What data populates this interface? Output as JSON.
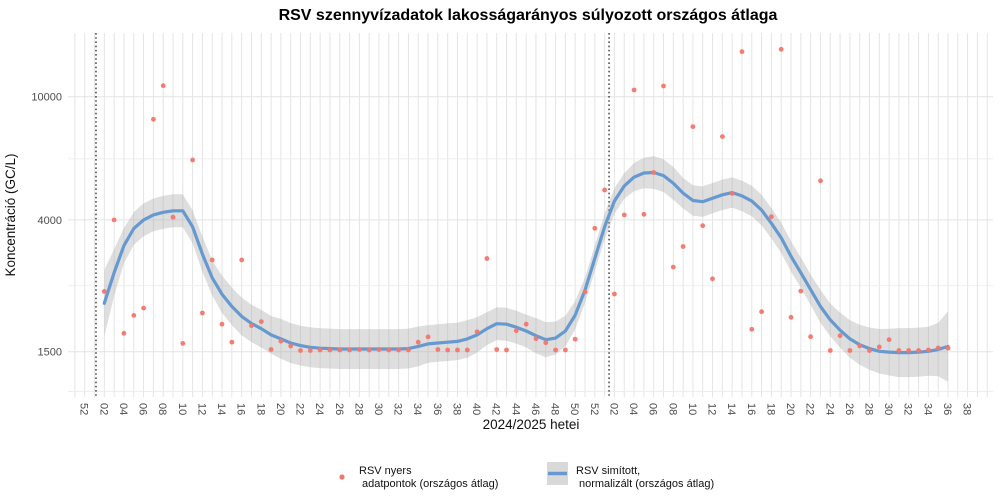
{
  "title": "RSV szennyvízadatok lakosságarányos súlyozott országos átlaga",
  "axis": {
    "xlabel": "2024/2025 hetei",
    "ylabel": "Koncentráció (GC/L)"
  },
  "legend": {
    "raw_line1": "RSV nyers",
    "raw_line2": " adatpontok (országos átlag)",
    "smooth_line1": "RSV simított,",
    "smooth_line2": " normalizált (országos átlag)"
  },
  "colors": {
    "points": "#F3766C",
    "line": "#6699CF",
    "ribbon": "#A8A8A8",
    "grid": "#E4E4E4",
    "grid_minor": "#ECECEC",
    "vline": "#000000",
    "tick_text": "#4D4D4D",
    "legend_key_bg": "#D9D9D9"
  },
  "chart_data": {
    "type": "line",
    "title": "RSV szennyvízadatok lakosságarányos súlyozott országos átlaga",
    "xlabel": "2024/2025 hetei",
    "ylabel": "Koncentráció (GC/L)",
    "y_scale": "log10",
    "ylim": [
      1050,
      16000
    ],
    "grid": "on",
    "legend_position": "bottom",
    "y_tick_labels": [
      "10000",
      "4000",
      "1500"
    ],
    "y_major_ticks": [
      10000,
      4000,
      1500
    ],
    "y_minor_gridlines": [
      6300,
      2450,
      1115
    ],
    "x_tick_step_weeks": 2,
    "x_tick_labels": [
      "52",
      "02",
      "04",
      "06",
      "08",
      "10",
      "12",
      "14",
      "16",
      "18",
      "20",
      "22",
      "24",
      "26",
      "28",
      "30",
      "32",
      "34",
      "36",
      "38",
      "40",
      "42",
      "44",
      "46",
      "48",
      "50",
      "52",
      "02",
      "04",
      "06",
      "08",
      "10",
      "12",
      "14",
      "16",
      "18",
      "20",
      "22",
      "24",
      "26",
      "28",
      "30",
      "32",
      "34",
      "36",
      "38"
    ],
    "vline_x_idx": [
      1.15,
      53.45
    ],
    "first_data_week_idx": 2,
    "week_labels": [
      "02",
      "03",
      "04",
      "05",
      "06",
      "07",
      "08",
      "09",
      "10",
      "11",
      "12",
      "13",
      "14",
      "15",
      "16",
      "17",
      "18",
      "19",
      "20",
      "21",
      "22",
      "23",
      "24",
      "25",
      "26",
      "27",
      "28",
      "29",
      "30",
      "31",
      "32",
      "33",
      "34",
      "35",
      "36",
      "37",
      "38",
      "39",
      "40",
      "41",
      "42",
      "43",
      "44",
      "45",
      "46",
      "47",
      "48",
      "49",
      "50",
      "51",
      "52",
      "01",
      "02",
      "03",
      "04",
      "05",
      "06",
      "07",
      "08",
      "09",
      "10",
      "11",
      "12",
      "13",
      "14",
      "15",
      "16",
      "17",
      "18",
      "19",
      "20",
      "21",
      "22",
      "23",
      "24",
      "25",
      "26",
      "27",
      "28",
      "29",
      "30",
      "31",
      "32",
      "33",
      "34",
      "35",
      "36"
    ],
    "series": [
      {
        "name": "RSV nyers adatpontok (országos átlag)",
        "kind": "scatter",
        "color": "#F3766C",
        "values": [
          2350,
          4000,
          1720,
          1965,
          2075,
          8450,
          10850,
          4080,
          1595,
          6245,
          2000,
          2970,
          1840,
          1610,
          2970,
          1820,
          1876,
          1525,
          1622,
          1565,
          1513,
          1513,
          1519,
          1519,
          1519,
          1519,
          1525,
          1519,
          1525,
          1519,
          1519,
          1519,
          1610,
          1674,
          1525,
          1519,
          1519,
          1519,
          1740,
          3000,
          1525,
          1519,
          1753,
          1840,
          1652,
          1604,
          1519,
          1519,
          1646,
          2340,
          3757,
          4995,
          2305,
          4150,
          10510,
          4170,
          5690,
          10830,
          2815,
          3280,
          8000,
          3830,
          2580,
          7430,
          4870,
          13980,
          1772,
          2020,
          4096,
          14230,
          1938,
          2355,
          1677,
          5350,
          1513,
          1690,
          1513,
          1566,
          1513,
          1554,
          1640,
          1513,
          1513,
          1513,
          1519,
          1543,
          1540
        ]
      },
      {
        "name": "RSV simított, normalizált (országos átlag)",
        "kind": "line+ribbon",
        "color": "#6699CF",
        "ribbon_color": "#A8A8A8",
        "values": [
          2150,
          2700,
          3300,
          3750,
          4000,
          4150,
          4230,
          4280,
          4280,
          3800,
          3100,
          2600,
          2300,
          2100,
          1950,
          1850,
          1780,
          1700,
          1650,
          1600,
          1570,
          1550,
          1540,
          1535,
          1530,
          1530,
          1530,
          1530,
          1530,
          1530,
          1530,
          1535,
          1560,
          1590,
          1600,
          1610,
          1620,
          1650,
          1700,
          1780,
          1848,
          1840,
          1800,
          1750,
          1690,
          1640,
          1660,
          1750,
          1970,
          2370,
          3000,
          3800,
          4600,
          5150,
          5500,
          5670,
          5690,
          5560,
          5250,
          4880,
          4620,
          4580,
          4700,
          4820,
          4900,
          4780,
          4600,
          4300,
          3900,
          3500,
          3050,
          2700,
          2380,
          2100,
          1900,
          1760,
          1650,
          1580,
          1535,
          1505,
          1495,
          1490,
          1490,
          1495,
          1505,
          1525,
          1560
        ],
        "band_factor": [
          1.28,
          1.19,
          1.14,
          1.13,
          1.13,
          1.13,
          1.13,
          1.13,
          1.13,
          1.13,
          1.14,
          1.14,
          1.15,
          1.15,
          1.15,
          1.15,
          1.15,
          1.15,
          1.16,
          1.16,
          1.16,
          1.16,
          1.16,
          1.16,
          1.16,
          1.16,
          1.16,
          1.16,
          1.16,
          1.16,
          1.16,
          1.16,
          1.16,
          1.15,
          1.15,
          1.15,
          1.15,
          1.15,
          1.14,
          1.13,
          1.13,
          1.13,
          1.13,
          1.13,
          1.14,
          1.14,
          1.13,
          1.12,
          1.11,
          1.1,
          1.1,
          1.1,
          1.1,
          1.1,
          1.11,
          1.12,
          1.13,
          1.13,
          1.13,
          1.12,
          1.12,
          1.12,
          1.12,
          1.12,
          1.12,
          1.12,
          1.12,
          1.12,
          1.12,
          1.12,
          1.12,
          1.12,
          1.12,
          1.13,
          1.13,
          1.14,
          1.15,
          1.16,
          1.17,
          1.18,
          1.19,
          1.2,
          1.2,
          1.2,
          1.2,
          1.22,
          1.3
        ]
      }
    ]
  }
}
